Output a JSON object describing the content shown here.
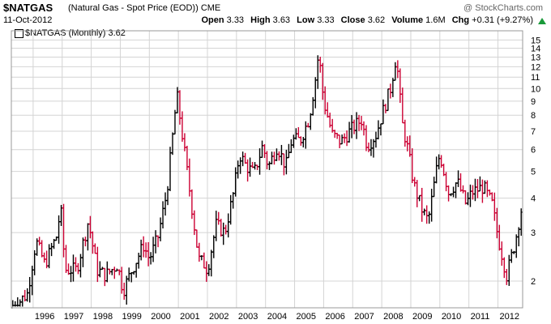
{
  "header": {
    "symbol": "$NATGAS",
    "description": "(Natural Gas - Spot Price (EOD)) CME",
    "date": "11-Oct-2012",
    "copyright": "@ StockCharts.com",
    "open_label": "Open",
    "open_value": "3.33",
    "high_label": "High",
    "high_value": "3.63",
    "low_label": "Low",
    "low_value": "3.33",
    "close_label": "Close",
    "close_value": "3.62",
    "volume_label": "Volume",
    "volume_value": "1.6M",
    "chg_label": "Chg",
    "chg_value": "+0.31 (+9.27%)",
    "change_direction": "up",
    "up_color": "#1a9a3a"
  },
  "legend": {
    "text": "$NATGAS (Monthly) 3.62"
  },
  "chart_data": {
    "type": "ohlc",
    "title": "$NATGAS (Natural Gas - Spot Price (EOD)) CME",
    "interval": "Monthly",
    "y_scale": "log",
    "ylim": [
      1.6,
      16.2
    ],
    "y_ticks": [
      2,
      3,
      4,
      5,
      6,
      7,
      8,
      9,
      10,
      11,
      12,
      13,
      14,
      15
    ],
    "y_axis_side": "right",
    "x_ticks": [
      "1996",
      "1997",
      "1998",
      "1999",
      "2000",
      "2001",
      "2002",
      "2003",
      "2004",
      "2005",
      "2006",
      "2007",
      "2008",
      "2009",
      "2010",
      "2011",
      "2012"
    ],
    "xlim_years": [
      1995.25,
      2012.85
    ],
    "grid": true,
    "colors": {
      "up": "#000000",
      "down": "#cc0033",
      "grid": "#d4d4d4",
      "frame": "#999999"
    },
    "keypoints": [
      [
        1995.3,
        1.6
      ],
      [
        1995.8,
        1.8
      ],
      [
        1996.1,
        2.8
      ],
      [
        1996.4,
        2.3
      ],
      [
        1996.8,
        2.9
      ],
      [
        1996.95,
        3.7
      ],
      [
        1997.1,
        2.2
      ],
      [
        1997.5,
        2.2
      ],
      [
        1997.9,
        3.3
      ],
      [
        1998.2,
        2.2
      ],
      [
        1998.5,
        2.1
      ],
      [
        1998.9,
        2.3
      ],
      [
        1999.1,
        1.85
      ],
      [
        1999.4,
        2.2
      ],
      [
        1999.8,
        2.7
      ],
      [
        2000.0,
        2.4
      ],
      [
        2000.3,
        2.9
      ],
      [
        2000.6,
        4.2
      ],
      [
        2000.95,
        9.5
      ],
      [
        2001.3,
        5.0
      ],
      [
        2001.7,
        2.4
      ],
      [
        2001.9,
        2.3
      ],
      [
        2002.0,
        2.2
      ],
      [
        2002.3,
        3.2
      ],
      [
        2002.6,
        3.0
      ],
      [
        2002.9,
        4.2
      ],
      [
        2003.1,
        5.8
      ],
      [
        2003.3,
        5.3
      ],
      [
        2003.6,
        4.9
      ],
      [
        2003.9,
        6.2
      ],
      [
        2004.1,
        5.2
      ],
      [
        2004.4,
        6.2
      ],
      [
        2004.7,
        5.2
      ],
      [
        2004.9,
        6.5
      ],
      [
        2005.2,
        6.5
      ],
      [
        2005.5,
        7.8
      ],
      [
        2005.7,
        10.5
      ],
      [
        2005.83,
        13.5
      ],
      [
        2006.0,
        9.0
      ],
      [
        2006.3,
        6.8
      ],
      [
        2006.6,
        6.4
      ],
      [
        2006.8,
        6.8
      ],
      [
        2007.0,
        7.2
      ],
      [
        2007.3,
        7.7
      ],
      [
        2007.5,
        6.2
      ],
      [
        2007.8,
        6.8
      ],
      [
        2008.0,
        8.0
      ],
      [
        2008.3,
        10.0
      ],
      [
        2008.5,
        13.2
      ],
      [
        2008.7,
        7.5
      ],
      [
        2008.9,
        6.0
      ],
      [
        2009.1,
        4.5
      ],
      [
        2009.4,
        3.6
      ],
      [
        2009.6,
        3.3
      ],
      [
        2009.9,
        5.2
      ],
      [
        2010.0,
        5.8
      ],
      [
        2010.3,
        4.2
      ],
      [
        2010.6,
        4.6
      ],
      [
        2010.9,
        3.8
      ],
      [
        2011.1,
        4.2
      ],
      [
        2011.5,
        4.4
      ],
      [
        2011.8,
        3.8
      ],
      [
        2012.0,
        2.9
      ],
      [
        2012.3,
        2.1
      ],
      [
        2012.6,
        2.8
      ],
      [
        2012.79,
        3.62
      ]
    ]
  }
}
